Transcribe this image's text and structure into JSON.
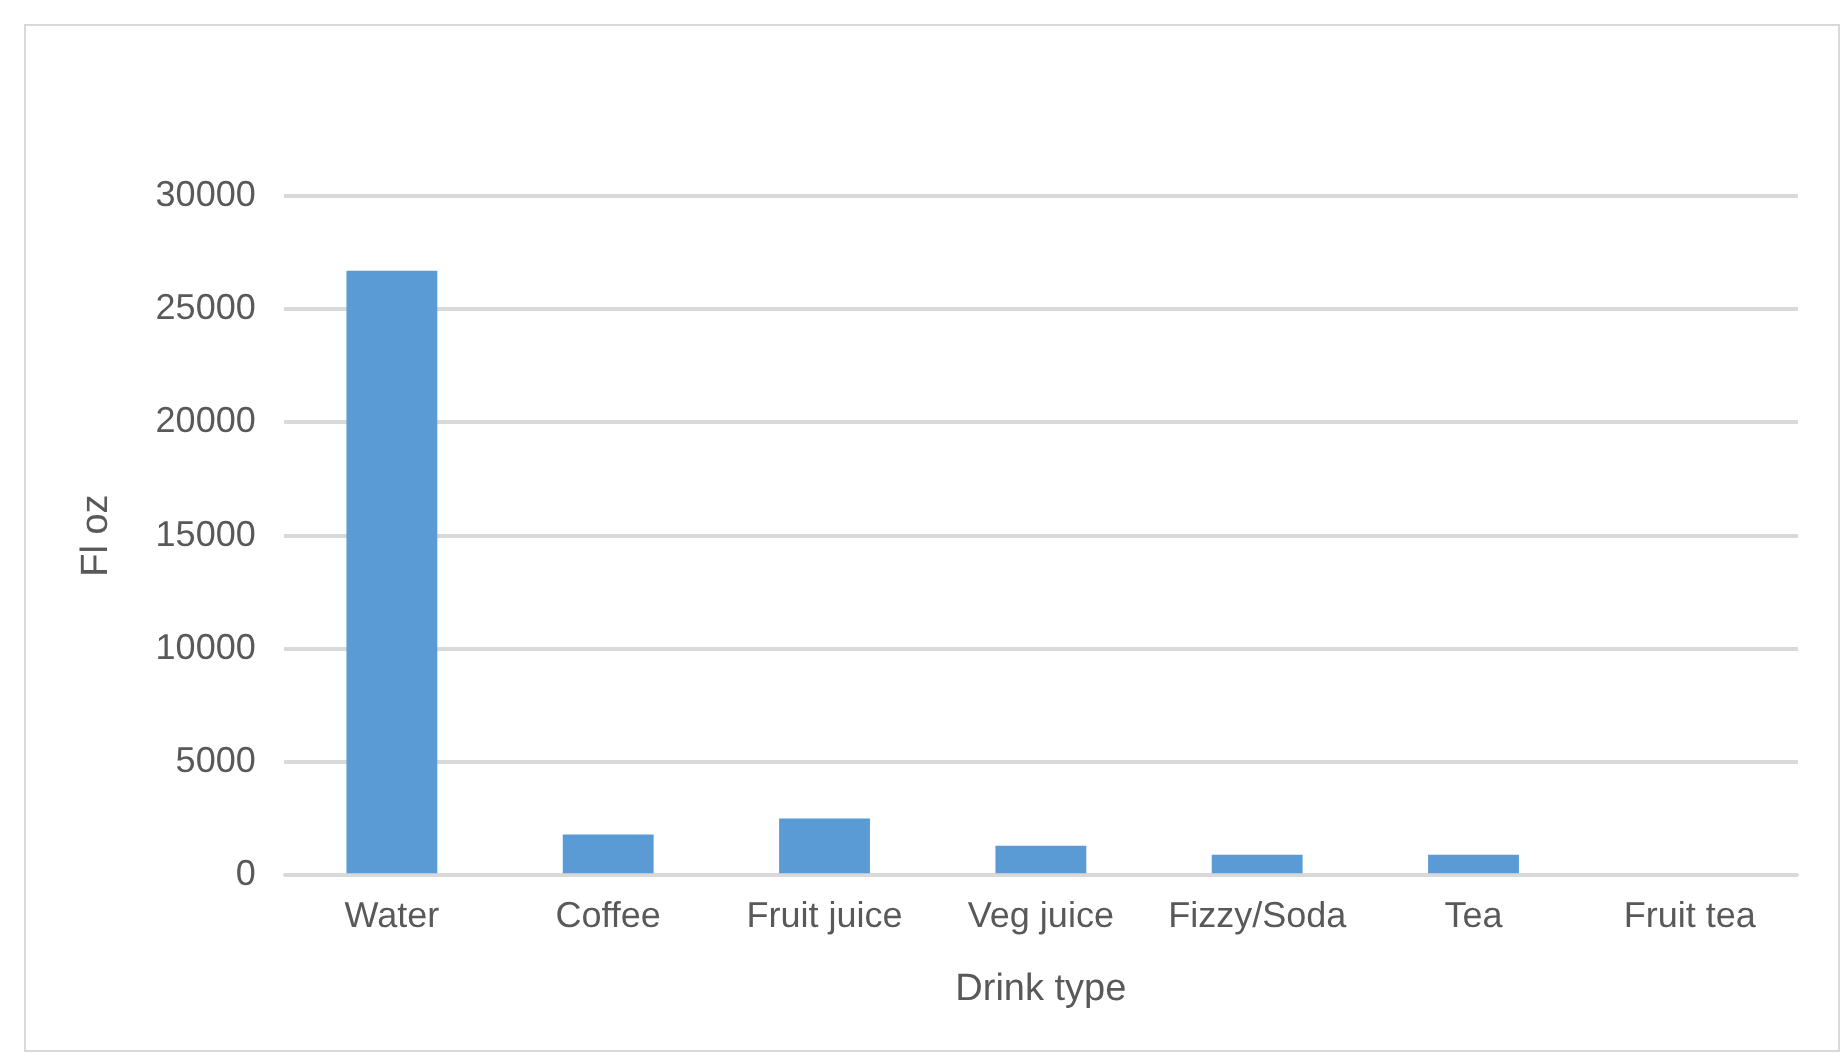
{
  "chart_data": {
    "type": "bar",
    "xlabel": "Drink type",
    "ylabel": "Fl oz",
    "categories": [
      "Water",
      "Coffee",
      "Fruit juice",
      "Veg juice",
      "Fizzy/Soda",
      "Tea",
      "Fruit tea"
    ],
    "values": [
      26700,
      1800,
      2500,
      1300,
      900,
      900,
      0
    ],
    "color": "#5b9bd5",
    "ylim": [
      0,
      30000
    ],
    "yticks": [
      0,
      5000,
      10000,
      15000,
      20000,
      25000,
      30000
    ],
    "grid": "y",
    "legend": false
  }
}
